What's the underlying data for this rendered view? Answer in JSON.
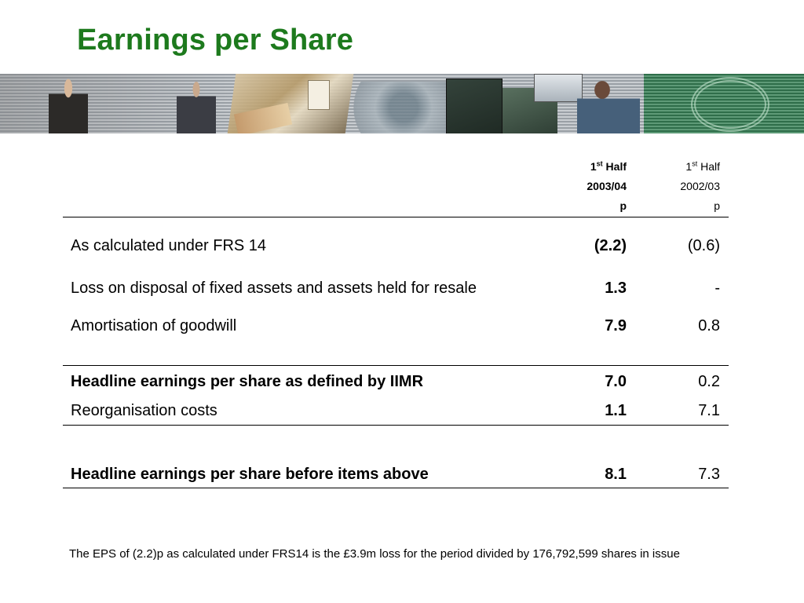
{
  "slide": {
    "title": "Earnings per Share",
    "title_color": "#1d7a1d"
  },
  "banner": {
    "description_icon": "photo-collage-banner"
  },
  "table": {
    "columns": [
      {
        "line1_prefix": "1",
        "line1_sup": "st",
        "line1_suffix": " Half",
        "line2": "2003/04",
        "line3": "p"
      },
      {
        "line1_prefix": "1",
        "line1_sup": "st",
        "line1_suffix": " Half",
        "line2": "2002/03",
        "line3": "p"
      }
    ],
    "rows": [
      {
        "label": "As calculated under FRS 14",
        "current": "(2.2)",
        "prior": "(0.6)"
      },
      {
        "label": "Loss on disposal of fixed assets and assets held for resale",
        "current": "1.3",
        "prior": "-"
      },
      {
        "label": "Amortisation of goodwill",
        "current": "7.9",
        "prior": "0.8"
      },
      {
        "label": "Headline earnings per share as defined by IIMR",
        "current": "7.0",
        "prior": "0.2"
      },
      {
        "label": "Reorganisation costs",
        "current": "1.1",
        "prior": "7.1"
      },
      {
        "label": "Headline earnings per share before items above",
        "current": "8.1",
        "prior": "7.3"
      }
    ]
  },
  "footnote": "The EPS of (2.2)p as calculated under FRS14 is the £3.9m loss for the period divided by 176,792,599 shares in issue"
}
